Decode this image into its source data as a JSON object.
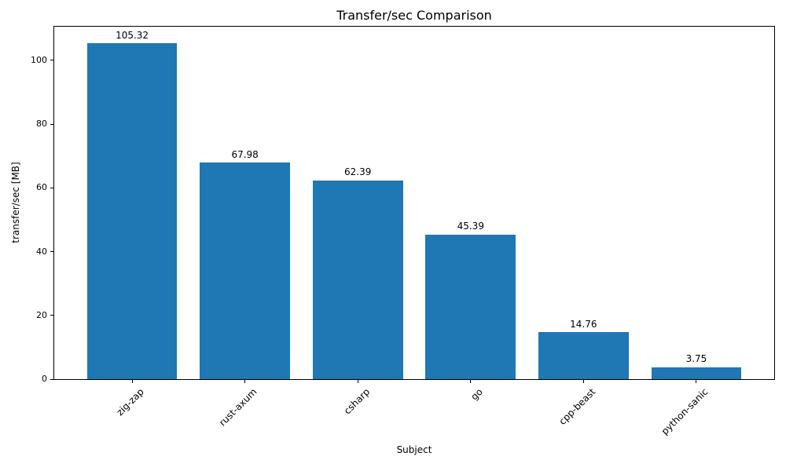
{
  "chart_data": {
    "type": "bar",
    "title": "Transfer/sec Comparison",
    "xlabel": "Subject",
    "ylabel": "transfer/sec [MB]",
    "categories": [
      "zig-zap",
      "rust-axum",
      "csharp",
      "go",
      "cpp-beast",
      "python-sanic"
    ],
    "values": [
      105.32,
      67.98,
      62.39,
      45.39,
      14.76,
      3.75
    ],
    "bar_value_labels": [
      "105.32",
      "67.98",
      "62.39",
      "45.39",
      "14.76",
      "3.75"
    ],
    "yticks": [
      0,
      20,
      40,
      60,
      80,
      100
    ],
    "ylim": [
      0,
      110.59
    ],
    "bar_color": "#1f77b4",
    "grid": false,
    "legend_position": "none"
  }
}
